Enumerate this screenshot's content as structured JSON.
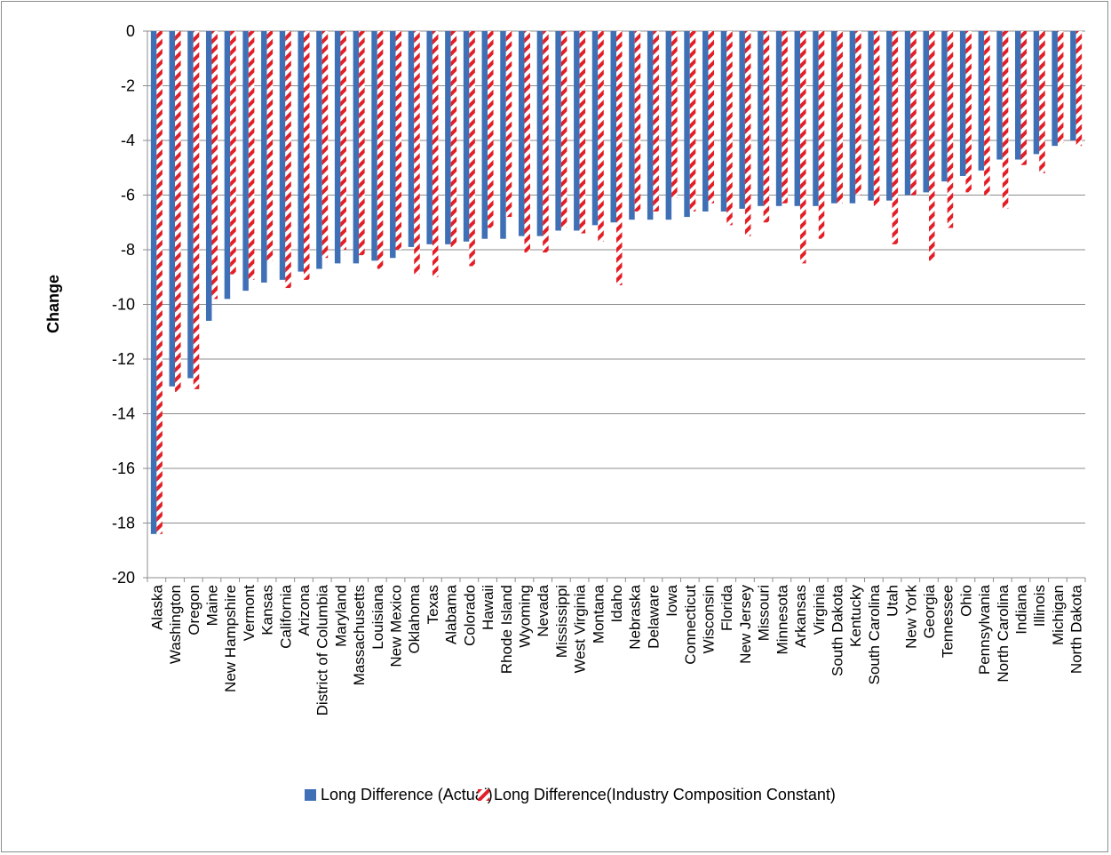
{
  "chart_data": {
    "type": "bar",
    "title": "",
    "xlabel": "",
    "ylabel": "Change",
    "ylim": [
      -20,
      0
    ],
    "yticks": [
      0,
      -2,
      -4,
      -6,
      -8,
      -10,
      -12,
      -14,
      -16,
      -18,
      -20
    ],
    "grid": true,
    "legend_position": "bottom",
    "categories": [
      "Alaska",
      "Washington",
      "Oregon",
      "Maine",
      "New Hampshire",
      "Vermont",
      "Kansas",
      "California",
      "Arizona",
      "District of Columbia",
      "Maryland",
      "Massachusetts",
      "Louisiana",
      "New Mexico",
      "Oklahoma",
      "Texas",
      "Alabama",
      "Colorado",
      "Hawaii",
      "Rhode Island",
      "Wyoming",
      "Nevada",
      "Mississippi",
      "West Virginia",
      "Montana",
      "Idaho",
      "Nebraska",
      "Delaware",
      "Iowa",
      "Connecticut",
      "Wisconsin",
      "Florida",
      "New Jersey",
      "Missouri",
      "Minnesota",
      "Arkansas",
      "Virginia",
      "South Dakota",
      "Kentucky",
      "South Carolina",
      "Utah",
      "New York",
      "Georgia",
      "Tennessee",
      "Ohio",
      "Pennsylvania",
      "North Carolina",
      "Indiana",
      "Illinois",
      "Michigan",
      "North Dakota"
    ],
    "series": [
      {
        "name": "Long Difference (Actual)",
        "color": "#3f6fb5",
        "pattern": "solid",
        "values": [
          -18.4,
          -13.0,
          -12.7,
          -10.6,
          -9.8,
          -9.5,
          -9.2,
          -9.1,
          -8.8,
          -8.7,
          -8.5,
          -8.5,
          -8.4,
          -8.3,
          -7.9,
          -7.8,
          -7.8,
          -7.7,
          -7.6,
          -7.6,
          -7.5,
          -7.5,
          -7.3,
          -7.3,
          -7.1,
          -7.0,
          -6.9,
          -6.9,
          -6.9,
          -6.8,
          -6.6,
          -6.6,
          -6.5,
          -6.4,
          -6.4,
          -6.4,
          -6.4,
          -6.3,
          -6.3,
          -6.2,
          -6.2,
          -6.0,
          -5.9,
          -5.5,
          -5.3,
          -5.1,
          -4.7,
          -4.7,
          -4.5,
          -4.2,
          -4.0
        ]
      },
      {
        "name": "Long Difference(Industry Composition Constant)",
        "color": "#e41e26",
        "pattern": "diagonal-stripe",
        "values": [
          -18.4,
          -13.2,
          -13.1,
          -9.8,
          -8.9,
          -9.1,
          -8.4,
          -9.4,
          -9.1,
          -8.3,
          -8.0,
          -8.2,
          -8.7,
          -8.0,
          -8.9,
          -9.0,
          -7.9,
          -8.6,
          -7.2,
          -6.8,
          -8.1,
          -8.1,
          -7.2,
          -7.4,
          -7.7,
          -9.3,
          -6.6,
          -6.6,
          -6.1,
          -6.6,
          -6.3,
          -7.1,
          -7.5,
          -7.0,
          -6.3,
          -8.5,
          -7.6,
          -6.3,
          -6.0,
          -6.4,
          -7.8,
          -6.0,
          -8.4,
          -7.2,
          -5.9,
          -6.0,
          -6.5,
          -4.9,
          -5.2,
          -4.1,
          -4.2
        ]
      }
    ]
  }
}
